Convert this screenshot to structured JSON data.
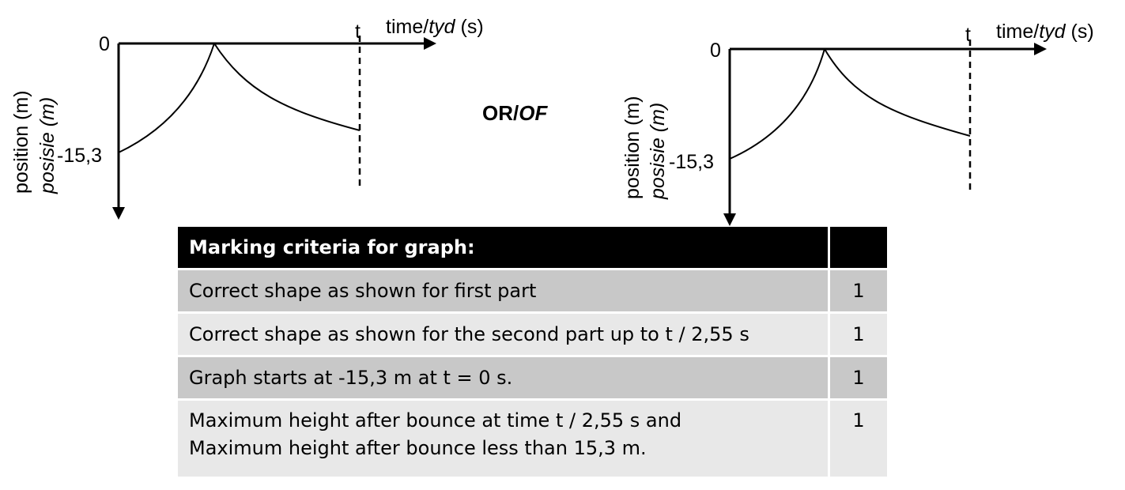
{
  "graphs": [
    {
      "x_label_prefix": "time/",
      "x_label_italic": "tyd",
      "x_label_suffix": " (s)",
      "t_label": "t",
      "zero_label": "0",
      "start_label": "-15,3",
      "y_label": "position (m)",
      "y_label_italic": "posisie (m)"
    },
    {
      "x_label_prefix": "time/",
      "x_label_italic": "tyd",
      "x_label_suffix": " (s)",
      "t_label": "t",
      "zero_label": "0",
      "start_label": "-15,3",
      "y_label": "position (m)",
      "y_label_italic": "posisie (m)"
    }
  ],
  "or_label": {
    "normal": "OR/",
    "italic": "OF"
  },
  "table": {
    "header": "Marking criteria for graph:",
    "rows": [
      {
        "text": "Correct shape as shown for first part",
        "score": "1"
      },
      {
        "text": "Correct shape as shown for the second part up to t / 2,55 s",
        "score": "1"
      },
      {
        "text": "Graph starts at -15,3 m at t = 0 s.",
        "score": "1"
      },
      {
        "line1": "Maximum height after bounce at time t / 2,55 s and",
        "line2": "Maximum height after bounce less than 15,3 m.",
        "score": "1"
      }
    ]
  }
}
